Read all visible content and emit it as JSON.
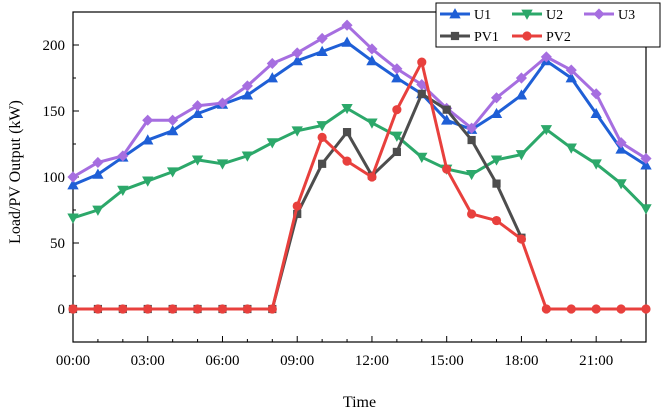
{
  "chart_data": {
    "type": "line",
    "title": "",
    "xlabel": "Time",
    "ylabel": "Load/PV Output (kW)",
    "xlim": [
      0,
      23
    ],
    "ylim": [
      -25,
      225
    ],
    "x_ticks": [
      0,
      3,
      6,
      9,
      12,
      15,
      18,
      21
    ],
    "x_tick_labels": [
      "00:00",
      "03:00",
      "06:00",
      "09:00",
      "12:00",
      "15:00",
      "18:00",
      "21:00"
    ],
    "y_ticks": [
      0,
      50,
      100,
      150,
      200
    ],
    "y_tick_labels": [
      "0",
      "50",
      "100",
      "150",
      "200"
    ],
    "grid": false,
    "legend_position": "top-right",
    "x": [
      0,
      1,
      2,
      3,
      4,
      5,
      6,
      7,
      8,
      9,
      10,
      11,
      12,
      13,
      14,
      15,
      16,
      17,
      18,
      19,
      20,
      21,
      22,
      23
    ],
    "series": [
      {
        "name": "U1",
        "color": "#1f5fd6",
        "marker": "triangle-up",
        "values": [
          94,
          102,
          115,
          128,
          135,
          148,
          155,
          162,
          175,
          188,
          195,
          202,
          188,
          175,
          163,
          143,
          136,
          148,
          162,
          188,
          175,
          148,
          121,
          109
        ]
      },
      {
        "name": "U2",
        "color": "#2ca86a",
        "marker": "triangle-down",
        "values": [
          69,
          75,
          90,
          97,
          104,
          113,
          110,
          116,
          126,
          135,
          139,
          152,
          141,
          131,
          115,
          106,
          102,
          113,
          117,
          136,
          122,
          110,
          95,
          76
        ]
      },
      {
        "name": "U3",
        "color": "#a66ee0",
        "marker": "diamond",
        "values": [
          100,
          111,
          116,
          143,
          143,
          154,
          156,
          169,
          186,
          194,
          205,
          215,
          197,
          182,
          170,
          152,
          137,
          160,
          175,
          191,
          181,
          163,
          126,
          114
        ]
      },
      {
        "name": "PV1",
        "color": "#4d4d4d",
        "marker": "square",
        "x": [
          0,
          1,
          2,
          3,
          4,
          5,
          6,
          7,
          8,
          9,
          10,
          11,
          12,
          13,
          14,
          15,
          16,
          17,
          18
        ],
        "values": [
          0,
          0,
          0,
          0,
          0,
          0,
          0,
          0,
          0,
          72,
          110,
          134,
          101,
          119,
          163,
          151,
          128,
          95,
          54
        ]
      },
      {
        "name": "PV2",
        "color": "#e8403d",
        "marker": "circle",
        "values": [
          0,
          0,
          0,
          0,
          0,
          0,
          0,
          0,
          0,
          78,
          130,
          112,
          100,
          151,
          187,
          106,
          72,
          67,
          53,
          0,
          0,
          0,
          0,
          0
        ]
      }
    ]
  }
}
